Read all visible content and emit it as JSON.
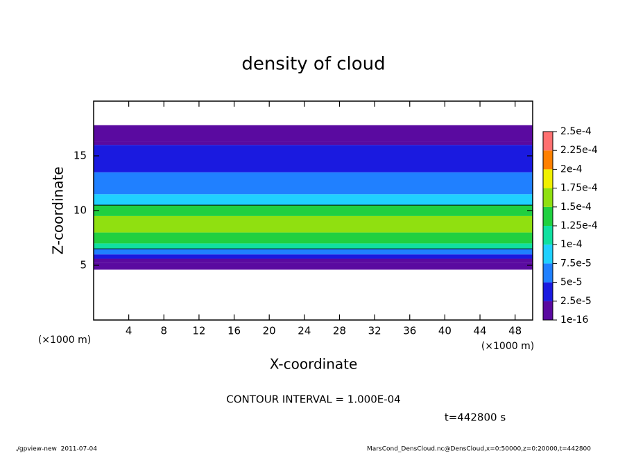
{
  "chart_data": {
    "type": "contour",
    "title": "density of cloud",
    "x_label": "X-coordinate",
    "y_label": "Z-coordinate",
    "x_unit": "(×1000 m)",
    "xlim": [
      0,
      50
    ],
    "xticks": [
      4,
      8,
      12,
      16,
      20,
      24,
      28,
      32,
      36,
      40,
      44,
      48
    ],
    "ylim": [
      0,
      20
    ],
    "yticks": [
      5,
      10,
      15
    ],
    "z_edges": [
      4.6,
      5.2,
      5.6,
      6.0,
      6.5,
      7.0,
      8.0,
      9.5,
      10.5,
      11.5,
      12.5,
      13.5,
      15.0,
      16.0,
      16.3,
      17.8
    ],
    "values": [
      1e-06,
      1.5e-05,
      4e-05,
      7e-05,
      0.000105,
      0.00014,
      0.000155,
      0.00013,
      9e-05,
      7e-05,
      5.5e-05,
      4.5e-05,
      3e-05,
      1e-05,
      1e-06
    ],
    "levels": [
      {
        "value": 1e-16,
        "label": "1e-16"
      },
      {
        "value": 2.5e-05,
        "label": "2.5e-5"
      },
      {
        "value": 5e-05,
        "label": "5e-5"
      },
      {
        "value": 7.5e-05,
        "label": "7.5e-5"
      },
      {
        "value": 0.0001,
        "label": "1e-4"
      },
      {
        "value": 0.000125,
        "label": "1.25e-4"
      },
      {
        "value": 0.00015,
        "label": "1.5e-4"
      },
      {
        "value": 0.000175,
        "label": "1.75e-4"
      },
      {
        "value": 0.0002,
        "label": "2e-4"
      },
      {
        "value": 0.000225,
        "label": "2.25e-4"
      },
      {
        "value": 0.00025,
        "label": "2.5e-4"
      }
    ],
    "colors": [
      "#5a0aa0",
      "#1a1ae0",
      "#2080ff",
      "#20d0ff",
      "#10e0a0",
      "#20d040",
      "#90e010",
      "#f0f000",
      "#ff8000",
      "#ff7070"
    ],
    "contour_interval": {
      "value": 0.0001,
      "label": "CONTOUR INTERVAL = 1.000E-04"
    },
    "time_label": "t=442800 s",
    "footer_left": "./gpview-new  2011-07-04",
    "footer_right": "MarsCond_DensCloud.nc@DensCloud,x=0:50000,z=0:20000,t=442800"
  }
}
